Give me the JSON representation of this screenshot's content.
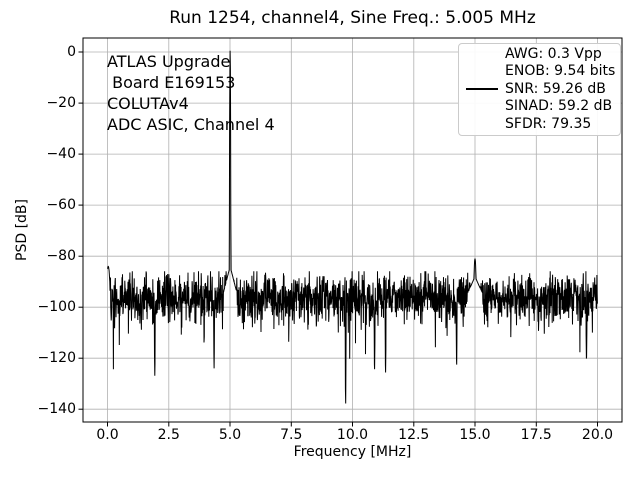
{
  "figure": {
    "background": "#ffffff",
    "grid_color": "#b0b0b0",
    "spine_color": "#000000",
    "tick_color": "#000000"
  },
  "chart_data": {
    "type": "line",
    "title": "Run 1254, channel4, Sine Freq.: 5.005 MHz",
    "xlabel": "Frequency [MHz]",
    "ylabel": "PSD [dB]",
    "xlim": [
      -1,
      21
    ],
    "ylim": [
      -145,
      5.5
    ],
    "xtick_values": [
      0,
      2.5,
      5,
      7.5,
      10,
      12.5,
      15,
      17.5,
      20
    ],
    "xtick_labels": [
      "0.0",
      "2.5",
      "5.0",
      "7.5",
      "10.0",
      "12.5",
      "15.0",
      "17.5",
      "20.0"
    ],
    "ytick_values": [
      0,
      -20,
      -40,
      -60,
      -80,
      -100,
      -120,
      -140
    ],
    "ytick_labels": [
      "0",
      "−20",
      "−40",
      "−60",
      "−80",
      "−100",
      "−120",
      "−140"
    ],
    "grid": true,
    "line_color": "#000000",
    "series": [
      {
        "name": "PSD trace",
        "description": "FFT power spectral density noise floor with carrier spike"
      }
    ],
    "signal": {
      "freq_span_mhz": [
        0,
        20
      ],
      "n_points": 2048,
      "noise_floor_db": -96.5,
      "noise_sigma_db": 4.8,
      "carrier_freq_mhz": 5.005,
      "carrier_peak_db": 0.5
    },
    "features": [
      {
        "kind": "peak",
        "freq_mhz": 5.005,
        "level_db": 0.5,
        "width_mhz": 0.035,
        "skirt_level_db": -84,
        "skirt_width_mhz": 0.28
      },
      {
        "kind": "peak",
        "freq_mhz": 15.0,
        "level_db": -81,
        "width_mhz": 0.05,
        "skirt_level_db": -88,
        "skirt_width_mhz": 0.3
      },
      {
        "kind": "peak",
        "freq_mhz": 0.03,
        "level_db": -84,
        "width_mhz": 0.07
      },
      {
        "kind": "dip",
        "freq_mhz": 9.72,
        "level_db": -138,
        "width_mhz": 0.02
      },
      {
        "kind": "dip",
        "freq_mhz": 1.93,
        "level_db": -127,
        "width_mhz": 0.02
      },
      {
        "kind": "dip",
        "freq_mhz": 4.35,
        "level_db": -124,
        "width_mhz": 0.02
      },
      {
        "kind": "dip",
        "freq_mhz": 10.9,
        "level_db": -125,
        "width_mhz": 0.02
      },
      {
        "kind": "dip",
        "freq_mhz": 11.35,
        "level_db": -126,
        "width_mhz": 0.02
      },
      {
        "kind": "dip",
        "freq_mhz": 14.25,
        "level_db": -123,
        "width_mhz": 0.02
      },
      {
        "kind": "dip",
        "freq_mhz": 19.55,
        "level_db": -121,
        "width_mhz": 0.02
      }
    ],
    "legend": {
      "position": "upper right",
      "marker": "black-line",
      "entries": [
        "AWG: 0.3 Vpp",
        "ENOB: 9.54 bits",
        "SNR: 59.26 dB",
        "SINAD: 59.2 dB",
        "SFDR: 79.35"
      ]
    },
    "annotation": {
      "lines": [
        "ATLAS Upgrade",
        " Board E169153",
        "COLUTAv4",
        "ADC ASIC, Channel 4"
      ]
    }
  }
}
